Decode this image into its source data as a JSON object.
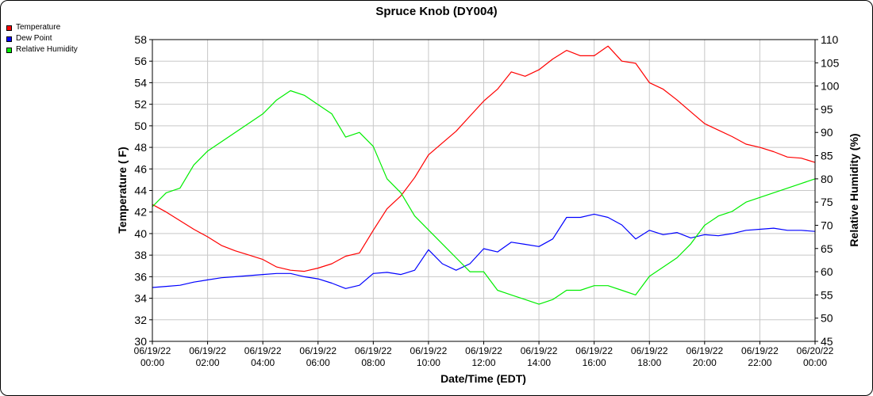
{
  "chart_data": {
    "type": "line",
    "title": "Spruce Knob (DY004)",
    "xlabel": "Date/Time (EDT)",
    "ylabel": "Temperature ( F)",
    "y2label": "Relative Humidity (%)",
    "ylim": [
      30,
      58
    ],
    "y2lim": [
      45,
      110
    ],
    "yticks": [
      "30",
      "32",
      "34",
      "36",
      "38",
      "40",
      "42",
      "44",
      "46",
      "48",
      "50",
      "52",
      "54",
      "56",
      "58"
    ],
    "y2ticks": [
      "45",
      "50",
      "55",
      "60",
      "65",
      "70",
      "75",
      "80",
      "85",
      "90",
      "95",
      "100",
      "105",
      "110"
    ],
    "xticks": [
      {
        "date": "06/19/22",
        "time": "00:00"
      },
      {
        "date": "06/19/22",
        "time": "02:00"
      },
      {
        "date": "06/19/22",
        "time": "04:00"
      },
      {
        "date": "06/19/22",
        "time": "06:00"
      },
      {
        "date": "06/19/22",
        "time": "08:00"
      },
      {
        "date": "06/19/22",
        "time": "10:00"
      },
      {
        "date": "06/19/22",
        "time": "12:00"
      },
      {
        "date": "06/19/22",
        "time": "14:00"
      },
      {
        "date": "06/19/22",
        "time": "16:00"
      },
      {
        "date": "06/19/22",
        "time": "18:00"
      },
      {
        "date": "06/19/22",
        "time": "20:00"
      },
      {
        "date": "06/19/22",
        "time": "22:00"
      },
      {
        "date": "06/20/22",
        "time": "00:00"
      }
    ],
    "grid": true,
    "legend_position": "top-left",
    "x_hours": [
      0,
      0.5,
      1,
      1.5,
      2,
      2.5,
      3,
      3.5,
      4,
      4.5,
      5,
      5.5,
      6,
      6.5,
      7,
      7.5,
      8,
      8.5,
      9,
      9.5,
      10,
      10.5,
      11,
      11.5,
      12,
      12.5,
      13,
      13.5,
      14,
      14.5,
      15,
      15.5,
      16,
      16.5,
      17,
      17.5,
      18,
      18.5,
      19,
      19.5,
      20,
      20.5,
      21,
      21.5,
      22,
      22.5,
      23,
      23.5,
      24
    ],
    "series": [
      {
        "name": "Temperature",
        "axis": "left",
        "color": "#ff0000",
        "values": [
          42.7,
          42.0,
          41.2,
          40.4,
          39.7,
          38.9,
          38.4,
          38.0,
          37.6,
          36.9,
          36.6,
          36.5,
          36.8,
          37.2,
          37.9,
          38.2,
          40.3,
          42.3,
          43.5,
          45.2,
          47.3,
          48.4,
          49.5,
          50.9,
          52.3,
          53.4,
          55.0,
          54.6,
          55.2,
          56.2,
          57.0,
          56.5,
          56.5,
          57.4,
          56.0,
          55.8,
          54.0,
          53.4,
          52.4,
          51.3,
          50.2,
          49.6,
          49.0,
          48.3,
          48.0,
          47.6,
          47.1,
          47.0,
          46.6
        ]
      },
      {
        "name": "Dew Point",
        "axis": "left",
        "color": "#0000ff",
        "values": [
          35.0,
          35.1,
          35.2,
          35.5,
          35.7,
          35.9,
          36.0,
          36.1,
          36.2,
          36.3,
          36.3,
          36.0,
          35.8,
          35.4,
          34.9,
          35.2,
          36.3,
          36.4,
          36.2,
          36.6,
          38.5,
          37.2,
          36.6,
          37.2,
          38.6,
          38.3,
          39.2,
          39.0,
          38.8,
          39.5,
          41.5,
          41.5,
          41.8,
          41.5,
          40.8,
          39.5,
          40.3,
          39.9,
          40.1,
          39.6,
          39.9,
          39.8,
          40.0,
          40.3,
          40.4,
          40.5,
          40.3,
          40.3,
          40.2
        ]
      },
      {
        "name": "Relative Humidity",
        "axis": "right",
        "color": "#00ee00",
        "values": [
          74,
          77,
          78,
          83,
          86,
          88,
          90,
          92,
          94,
          97,
          99,
          98,
          96,
          94,
          89,
          90,
          87,
          80,
          77,
          72,
          69,
          66,
          63,
          60,
          60,
          56,
          55,
          54,
          53,
          54,
          56,
          56,
          57,
          57,
          56,
          55,
          59,
          61,
          63,
          66,
          70,
          72,
          73,
          75,
          76,
          77,
          78,
          79,
          80
        ]
      }
    ]
  }
}
